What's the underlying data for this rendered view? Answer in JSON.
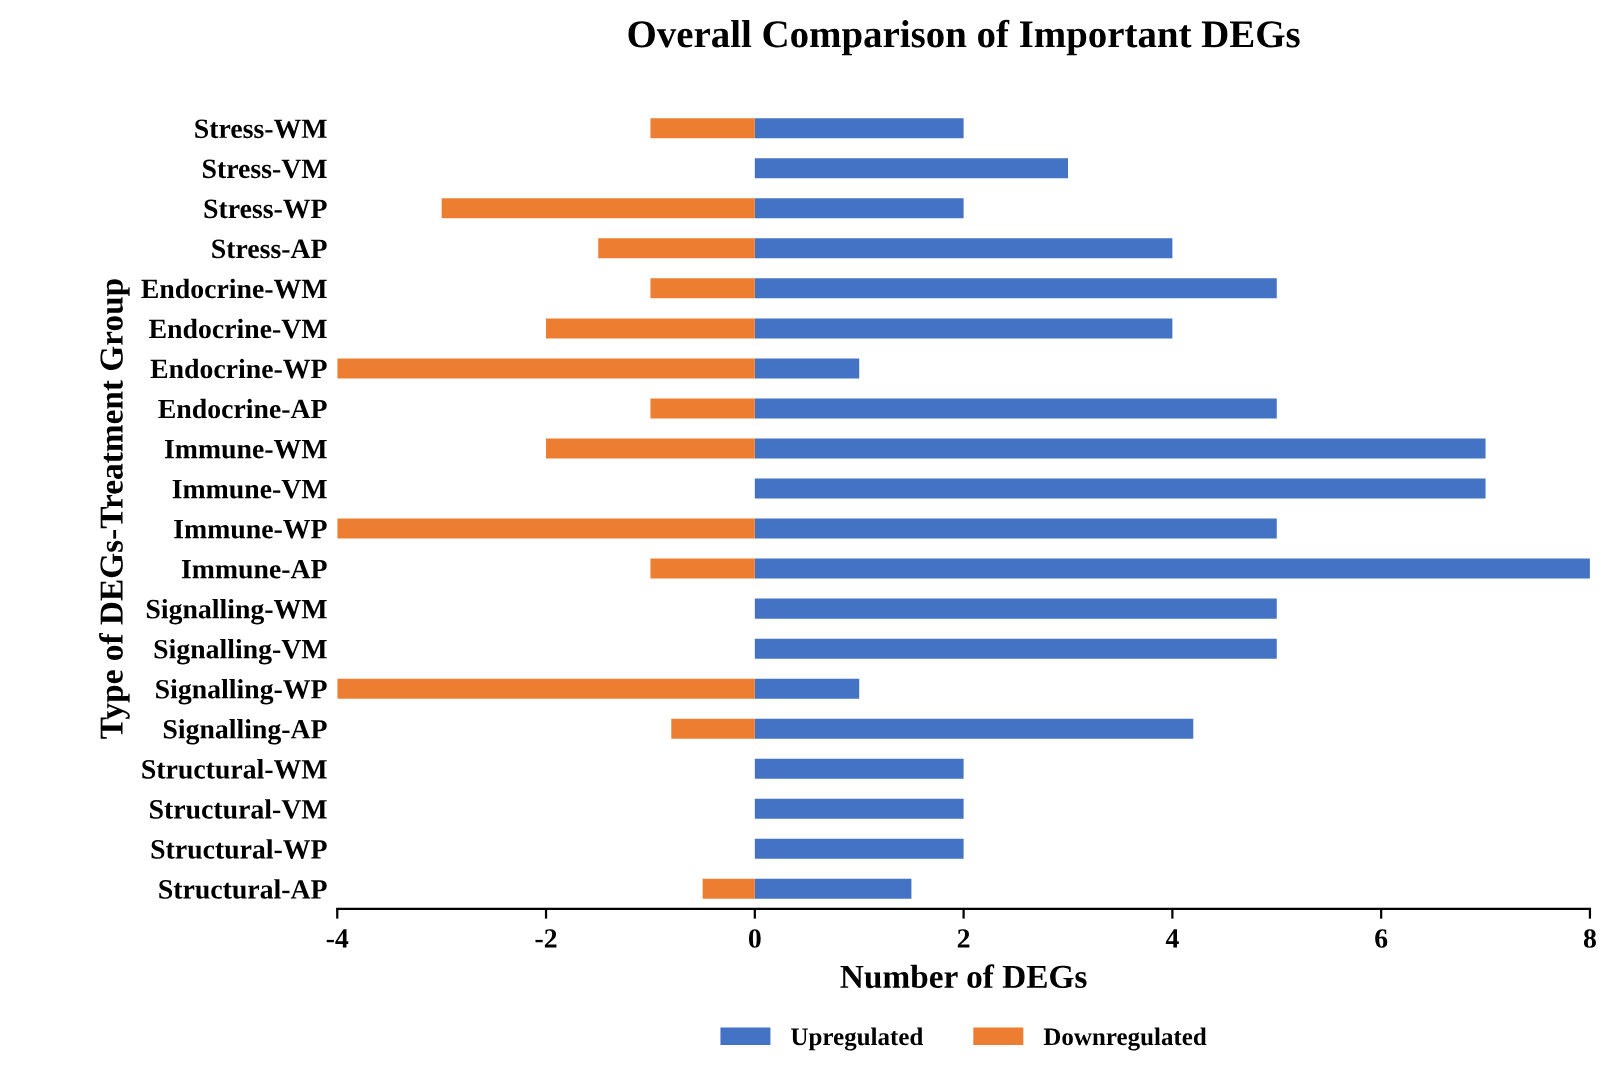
{
  "chart_data": {
    "type": "bar",
    "orientation": "horizontal",
    "stacked": true,
    "title": "Overall Comparison of Important DEGs",
    "xlabel": "Number of DEGs",
    "ylabel": "Type of DEGs-Treatment Group",
    "categories": [
      "Stress-WM",
      "Stress-VM",
      "Stress-WP",
      "Stress-AP",
      "Endocrine-WM",
      "Endocrine-VM",
      "Endocrine-WP",
      "Endocrine-AP",
      "Immune-WM",
      "Immune-VM",
      "Immune-WP",
      "Immune-AP",
      "Signalling-WM",
      "Signalling-VM",
      "Signalling-WP",
      "Signalling-AP",
      "Structural-WM",
      "Structural-VM",
      "Structural-WP",
      "Structural-AP"
    ],
    "series": [
      {
        "name": "Upregulated",
        "color": "#4472c4",
        "values": [
          2,
          3,
          2,
          4,
          5,
          4,
          1,
          5,
          7,
          7,
          5,
          8,
          5,
          5,
          1,
          4.2,
          2,
          2,
          2,
          1.5
        ]
      },
      {
        "name": "Downregulated",
        "color": "#ed7d31",
        "values": [
          -1,
          0,
          -3,
          -1.5,
          -1,
          -2,
          -4,
          -1,
          -2,
          0,
          -4,
          -1,
          0,
          0,
          -4,
          -0.8,
          0,
          0,
          0,
          -0.5
        ]
      }
    ],
    "xlim": [
      -4,
      8
    ],
    "xticks": [
      -4,
      -2,
      0,
      2,
      4,
      6,
      8
    ],
    "grid": false,
    "legend": "bottom"
  }
}
